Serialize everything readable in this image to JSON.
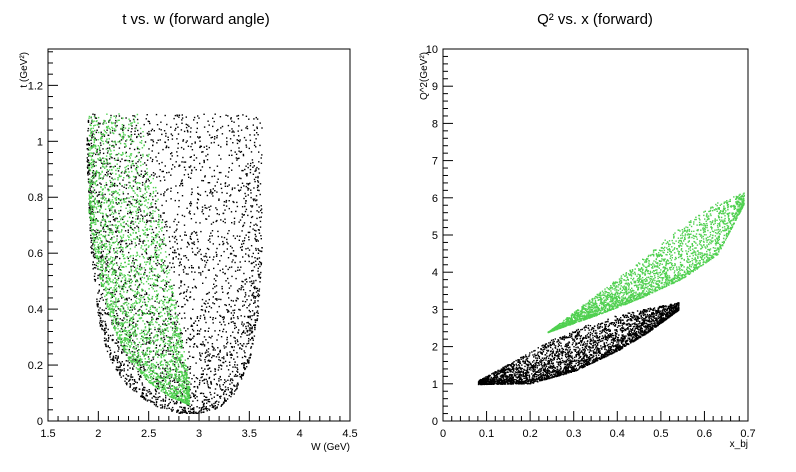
{
  "chart_data": [
    {
      "type": "scatter",
      "title": "t vs. w (forward angle)",
      "xlabel": "W (GeV)",
      "ylabel": "t (GeV²)",
      "xlim": [
        1.5,
        4.5
      ],
      "ylim": [
        0,
        1.33
      ],
      "xticks": [
        1.5,
        2,
        2.5,
        3,
        3.5,
        4,
        4.5
      ],
      "xtick_labels": [
        "1.5",
        "2",
        "2.5",
        "3",
        "3.5",
        "4",
        "4.5"
      ],
      "yticks": [
        0,
        0.2,
        0.4,
        0.6,
        0.8,
        1,
        1.2
      ],
      "ytick_labels": [
        "0",
        "0.2",
        "0.4",
        "0.6",
        "0.8",
        "1",
        "1.2"
      ],
      "grid": false,
      "series": [
        {
          "color": "#000000",
          "region": {
            "upper": [
              [
                1.88,
                1.1
              ],
              [
                3.62,
                1.1
              ]
            ],
            "lower": [
              [
                1.88,
                0.95
              ],
              [
                1.92,
                0.62
              ],
              [
                2.0,
                0.36
              ],
              [
                2.1,
                0.23
              ],
              [
                2.25,
                0.14
              ],
              [
                2.45,
                0.08
              ],
              [
                2.6,
                0.05
              ],
              [
                2.8,
                0.03
              ],
              [
                3.0,
                0.03
              ],
              [
                3.2,
                0.05
              ],
              [
                3.35,
                0.1
              ],
              [
                3.5,
                0.22
              ],
              [
                3.58,
                0.38
              ],
              [
                3.62,
                0.6
              ]
            ]
          }
        },
        {
          "color": "#50d050",
          "region": {
            "upper": [
              [
                1.9,
                1.1
              ],
              [
                2.4,
                1.1
              ],
              [
                2.55,
                0.88
              ],
              [
                2.65,
                0.68
              ],
              [
                2.72,
                0.5
              ],
              [
                2.8,
                0.36
              ],
              [
                2.86,
                0.22
              ],
              [
                2.9,
                0.14
              ]
            ],
            "lower": [
              [
                1.9,
                0.75
              ],
              [
                1.96,
                0.6
              ],
              [
                2.05,
                0.45
              ],
              [
                2.15,
                0.33
              ],
              [
                2.3,
                0.22
              ],
              [
                2.5,
                0.14
              ],
              [
                2.7,
                0.09
              ],
              [
                2.9,
                0.06
              ]
            ]
          }
        }
      ]
    },
    {
      "type": "scatter",
      "title": "Q² vs. x (forward)",
      "xlabel": "x_bj",
      "ylabel": "Q^2(GeV²)",
      "xlim": [
        0,
        0.7
      ],
      "ylim": [
        0,
        10
      ],
      "xticks": [
        0,
        0.1,
        0.2,
        0.3,
        0.4,
        0.5,
        0.6,
        0.7
      ],
      "xtick_labels": [
        "0",
        "0.1",
        "0.2",
        "0.3",
        "0.4",
        "0.5",
        "0.6",
        "0.7"
      ],
      "yticks": [
        0,
        1,
        2,
        3,
        4,
        5,
        6,
        7,
        8,
        9,
        10
      ],
      "ytick_labels": [
        "0",
        "1",
        "2",
        "3",
        "4",
        "5",
        "6",
        "7",
        "8",
        "9",
        "10"
      ],
      "grid": false,
      "series": [
        {
          "color": "#000000",
          "region": {
            "upper": [
              [
                0.08,
                1.1
              ],
              [
                0.15,
                1.55
              ],
              [
                0.25,
                2.2
              ],
              [
                0.35,
                2.7
              ],
              [
                0.45,
                3.0
              ],
              [
                0.54,
                3.2
              ]
            ],
            "lower": [
              [
                0.08,
                1.0
              ],
              [
                0.2,
                1.02
              ],
              [
                0.3,
                1.35
              ],
              [
                0.4,
                1.9
              ],
              [
                0.47,
                2.4
              ],
              [
                0.54,
                3.0
              ]
            ]
          }
        },
        {
          "color": "#50d050",
          "region": {
            "upper": [
              [
                0.24,
                2.4
              ],
              [
                0.35,
                3.4
              ],
              [
                0.45,
                4.3
              ],
              [
                0.55,
                5.3
              ],
              [
                0.63,
                5.9
              ],
              [
                0.69,
                6.15
              ]
            ],
            "lower": [
              [
                0.24,
                2.4
              ],
              [
                0.35,
                2.85
              ],
              [
                0.45,
                3.3
              ],
              [
                0.55,
                3.85
              ],
              [
                0.63,
                4.5
              ],
              [
                0.69,
                5.85
              ]
            ]
          }
        }
      ]
    }
  ]
}
